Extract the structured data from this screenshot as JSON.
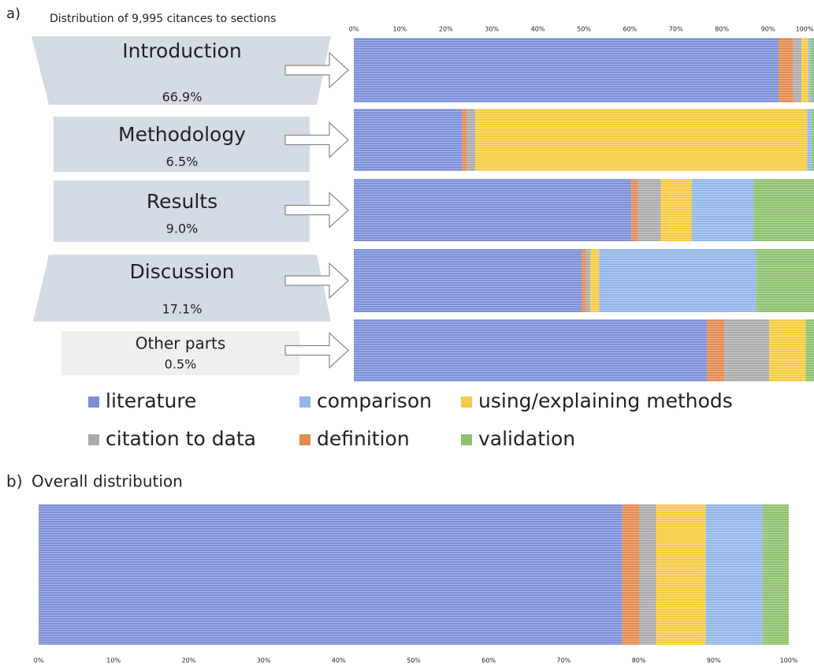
{
  "chart_data": [
    {
      "type": "stacked_barh",
      "panel": "a)",
      "title": "Distribution of 9,995 citances to sections",
      "categories": [
        "Introduction",
        "Methodology",
        "Results",
        "Discussion",
        "Other parts"
      ],
      "section_shares": [
        66.9,
        6.5,
        9.0,
        17.1,
        0.5
      ],
      "section_share_labels": [
        "66.9%",
        "6.5%",
        "9.0%",
        "17.1%",
        "0.5%"
      ],
      "series": [
        {
          "name": "literature",
          "color": "#7b8fd8",
          "values": [
            92.3,
            23.5,
            60.3,
            49.5,
            76.7
          ]
        },
        {
          "name": "definition",
          "color": "#e38a4f",
          "values": [
            3.2,
            1.0,
            1.4,
            0.9,
            3.8
          ]
        },
        {
          "name": "citation to data",
          "color": "#ababab",
          "values": [
            1.8,
            1.9,
            5.0,
            1.0,
            9.8
          ]
        },
        {
          "name": "using/explaining methods",
          "color": "#f6cb3f",
          "values": [
            1.5,
            72.1,
            6.7,
            1.9,
            7.9
          ]
        },
        {
          "name": "comparison",
          "color": "#92b6ea",
          "values": [
            0.5,
            1.0,
            13.5,
            34.1,
            0
          ]
        },
        {
          "name": "validation",
          "color": "#8fc06d",
          "values": [
            0.7,
            0.5,
            13.1,
            12.6,
            1.8
          ]
        }
      ],
      "xlim": [
        0,
        100
      ],
      "xticks": [
        {
          "value": 0,
          "label": "0%"
        },
        {
          "value": 10,
          "label": "10%"
        },
        {
          "value": 20,
          "label": "20%"
        },
        {
          "value": 30,
          "label": "30%"
        },
        {
          "value": 40,
          "label": "40%"
        },
        {
          "value": 50,
          "label": "50%"
        },
        {
          "value": 60,
          "label": "60%"
        },
        {
          "value": 70,
          "label": "70%"
        },
        {
          "value": 80,
          "label": "80%"
        },
        {
          "value": 90,
          "label": "90%"
        },
        {
          "value": 100,
          "label": "100%"
        }
      ]
    },
    {
      "type": "stacked_barh",
      "panel": "b)",
      "title": "Overall distribution",
      "series": [
        {
          "color": "#7b8fd8",
          "values": [
            77.8
          ]
        },
        {
          "color": "#e38a4f",
          "values": [
            2.3
          ]
        },
        {
          "color": "#ababab",
          "values": [
            2.2
          ]
        },
        {
          "color": "#f6cb3f",
          "values": [
            6.6
          ]
        },
        {
          "color": "#92b6ea",
          "values": [
            7.6
          ]
        },
        {
          "color": "#8fc06d",
          "values": [
            3.5
          ]
        }
      ],
      "xlim": [
        0,
        100
      ],
      "xticks": [
        {
          "value": 0,
          "label": "0%"
        },
        {
          "value": 10,
          "label": "10%"
        },
        {
          "value": 20,
          "label": "20%"
        },
        {
          "value": 30,
          "label": "30%"
        },
        {
          "value": 40,
          "label": "40%"
        },
        {
          "value": 50,
          "label": "50%"
        },
        {
          "value": 60,
          "label": "60%"
        },
        {
          "value": 70,
          "label": "70%"
        },
        {
          "value": 80,
          "label": "80%"
        },
        {
          "value": 90,
          "label": "90%"
        },
        {
          "value": 100,
          "label": "100%"
        }
      ]
    }
  ]
}
